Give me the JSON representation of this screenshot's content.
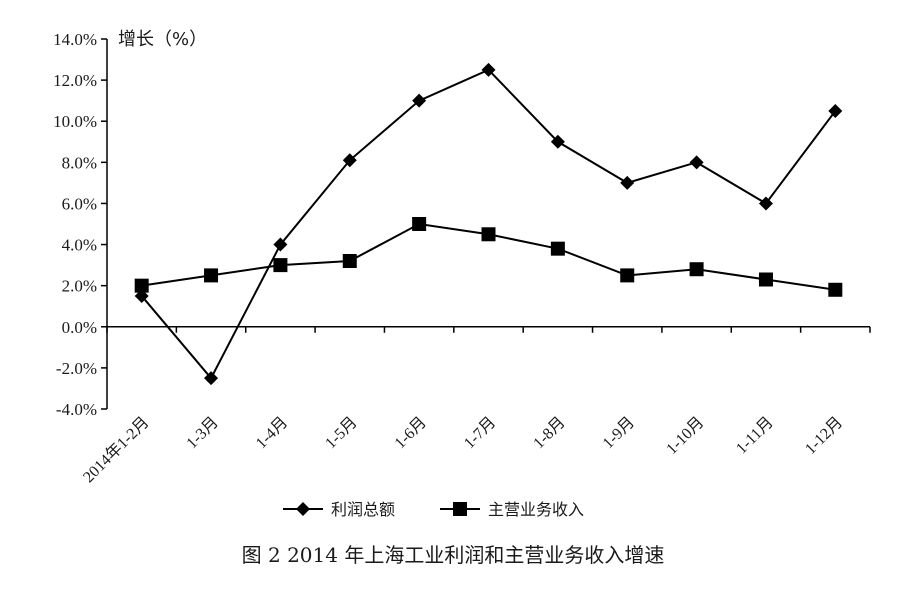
{
  "chart_data": {
    "type": "line",
    "caption": "图 2 2014 年上海工业利润和主营业务收入增速",
    "ylabel": "增长（%）",
    "xlabel": "",
    "categories": [
      "2014年1-2月",
      "1-3月",
      "1-4月",
      "1-5月",
      "1-6月",
      "1-7月",
      "1-8月",
      "1-9月",
      "1-10月",
      "1-11月",
      "1-12月"
    ],
    "ylim": [
      -4.0,
      14.0
    ],
    "yticks": [
      -4.0,
      -2.0,
      0.0,
      2.0,
      4.0,
      6.0,
      8.0,
      10.0,
      12.0,
      14.0
    ],
    "ytick_labels": [
      "-4.0%",
      "-2.0%",
      "0.0%",
      "2.0%",
      "4.0%",
      "6.0%",
      "8.0%",
      "10.0%",
      "12.0%",
      "14.0%"
    ],
    "grid": false,
    "legend_position": "bottom",
    "series": [
      {
        "name": "利润总额",
        "marker": "diamond",
        "color": "#000000",
        "values": [
          1.5,
          -2.5,
          4.0,
          8.1,
          11.0,
          12.5,
          9.0,
          7.0,
          8.0,
          6.0,
          10.5
        ]
      },
      {
        "name": "主营业务收入",
        "marker": "square",
        "color": "#000000",
        "values": [
          2.0,
          2.5,
          3.0,
          3.2,
          5.0,
          4.5,
          3.8,
          2.5,
          2.8,
          2.3,
          1.8
        ]
      }
    ]
  }
}
